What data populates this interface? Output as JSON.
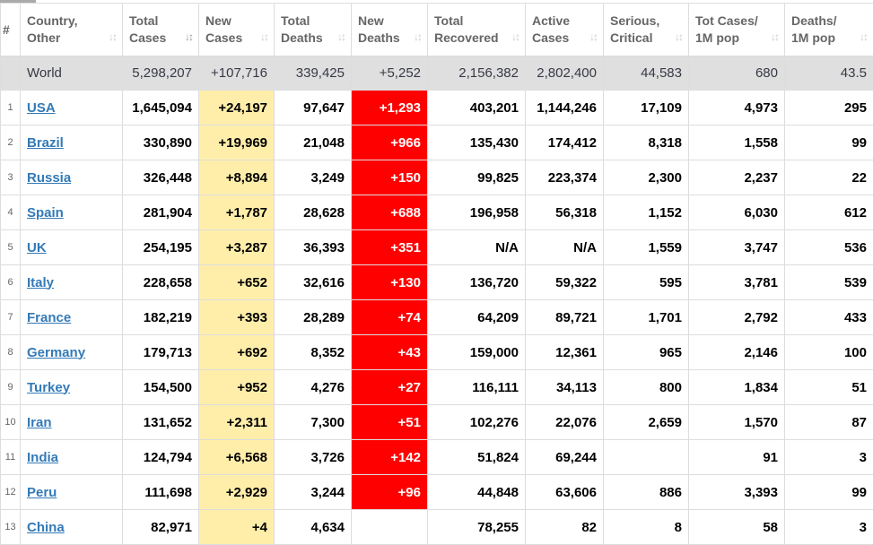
{
  "headers": [
    {
      "label": "#",
      "sortable": false
    },
    {
      "label": "Country, Other",
      "sortable": true
    },
    {
      "label": "Total Cases",
      "sortable": true,
      "active": true
    },
    {
      "label": "New Cases",
      "sortable": true
    },
    {
      "label": "Total Deaths",
      "sortable": true
    },
    {
      "label": "New Deaths",
      "sortable": true
    },
    {
      "label": "Total Recovered",
      "sortable": true
    },
    {
      "label": "Active Cases",
      "sortable": true
    },
    {
      "label": "Serious, Critical",
      "sortable": true
    },
    {
      "label": "Tot Cases/ 1M pop",
      "sortable": true
    },
    {
      "label": "Deaths/ 1M pop",
      "sortable": true
    }
  ],
  "sort_icon": "↓↕",
  "world": {
    "country": "World",
    "total_cases": "5,298,207",
    "new_cases": "+107,716",
    "total_deaths": "339,425",
    "new_deaths": "+5,252",
    "total_recovered": "2,156,382",
    "active_cases": "2,802,400",
    "serious_critical": "44,583",
    "cases_per_1m": "680",
    "deaths_per_1m": "43.5"
  },
  "rows": [
    {
      "idx": "1",
      "country": "USA",
      "total_cases": "1,645,094",
      "new_cases": "+24,197",
      "total_deaths": "97,647",
      "new_deaths": "+1,293",
      "total_recovered": "403,201",
      "active_cases": "1,144,246",
      "serious_critical": "17,109",
      "cases_per_1m": "4,973",
      "deaths_per_1m": "295"
    },
    {
      "idx": "2",
      "country": "Brazil",
      "total_cases": "330,890",
      "new_cases": "+19,969",
      "total_deaths": "21,048",
      "new_deaths": "+966",
      "total_recovered": "135,430",
      "active_cases": "174,412",
      "serious_critical": "8,318",
      "cases_per_1m": "1,558",
      "deaths_per_1m": "99"
    },
    {
      "idx": "3",
      "country": "Russia",
      "total_cases": "326,448",
      "new_cases": "+8,894",
      "total_deaths": "3,249",
      "new_deaths": "+150",
      "total_recovered": "99,825",
      "active_cases": "223,374",
      "serious_critical": "2,300",
      "cases_per_1m": "2,237",
      "deaths_per_1m": "22"
    },
    {
      "idx": "4",
      "country": "Spain",
      "total_cases": "281,904",
      "new_cases": "+1,787",
      "total_deaths": "28,628",
      "new_deaths": "+688",
      "total_recovered": "196,958",
      "active_cases": "56,318",
      "serious_critical": "1,152",
      "cases_per_1m": "6,030",
      "deaths_per_1m": "612"
    },
    {
      "idx": "5",
      "country": "UK",
      "total_cases": "254,195",
      "new_cases": "+3,287",
      "total_deaths": "36,393",
      "new_deaths": "+351",
      "total_recovered": "N/A",
      "active_cases": "N/A",
      "serious_critical": "1,559",
      "cases_per_1m": "3,747",
      "deaths_per_1m": "536"
    },
    {
      "idx": "6",
      "country": "Italy",
      "total_cases": "228,658",
      "new_cases": "+652",
      "total_deaths": "32,616",
      "new_deaths": "+130",
      "total_recovered": "136,720",
      "active_cases": "59,322",
      "serious_critical": "595",
      "cases_per_1m": "3,781",
      "deaths_per_1m": "539"
    },
    {
      "idx": "7",
      "country": "France",
      "total_cases": "182,219",
      "new_cases": "+393",
      "total_deaths": "28,289",
      "new_deaths": "+74",
      "total_recovered": "64,209",
      "active_cases": "89,721",
      "serious_critical": "1,701",
      "cases_per_1m": "2,792",
      "deaths_per_1m": "433"
    },
    {
      "idx": "8",
      "country": "Germany",
      "total_cases": "179,713",
      "new_cases": "+692",
      "total_deaths": "8,352",
      "new_deaths": "+43",
      "total_recovered": "159,000",
      "active_cases": "12,361",
      "serious_critical": "965",
      "cases_per_1m": "2,146",
      "deaths_per_1m": "100"
    },
    {
      "idx": "9",
      "country": "Turkey",
      "total_cases": "154,500",
      "new_cases": "+952",
      "total_deaths": "4,276",
      "new_deaths": "+27",
      "total_recovered": "116,111",
      "active_cases": "34,113",
      "serious_critical": "800",
      "cases_per_1m": "1,834",
      "deaths_per_1m": "51"
    },
    {
      "idx": "10",
      "country": "Iran",
      "total_cases": "131,652",
      "new_cases": "+2,311",
      "total_deaths": "7,300",
      "new_deaths": "+51",
      "total_recovered": "102,276",
      "active_cases": "22,076",
      "serious_critical": "2,659",
      "cases_per_1m": "1,570",
      "deaths_per_1m": "87"
    },
    {
      "idx": "11",
      "country": "India",
      "total_cases": "124,794",
      "new_cases": "+6,568",
      "total_deaths": "3,726",
      "new_deaths": "+142",
      "total_recovered": "51,824",
      "active_cases": "69,244",
      "serious_critical": "",
      "cases_per_1m": "91",
      "deaths_per_1m": "3"
    },
    {
      "idx": "12",
      "country": "Peru",
      "total_cases": "111,698",
      "new_cases": "+2,929",
      "total_deaths": "3,244",
      "new_deaths": "+96",
      "total_recovered": "44,848",
      "active_cases": "63,606",
      "serious_critical": "886",
      "cases_per_1m": "3,393",
      "deaths_per_1m": "99"
    },
    {
      "idx": "13",
      "country": "China",
      "total_cases": "82,971",
      "new_cases": "+4",
      "total_deaths": "4,634",
      "new_deaths": "",
      "total_recovered": "78,255",
      "active_cases": "82",
      "serious_critical": "8",
      "cases_per_1m": "58",
      "deaths_per_1m": "3"
    }
  ],
  "colors": {
    "new_cases_bg": "#ffeeaa",
    "new_deaths_bg": "#ff0000",
    "world_row_bg": "#dfdfdf",
    "link": "#337ab7",
    "header_text": "#666666"
  }
}
